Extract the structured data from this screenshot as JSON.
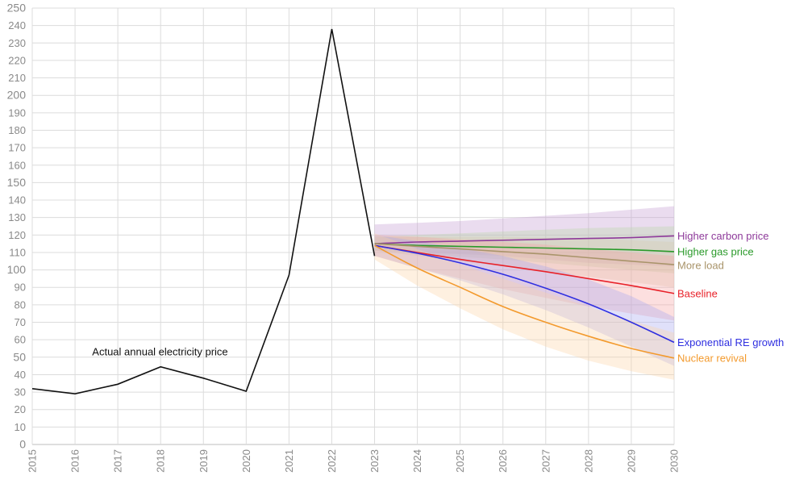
{
  "chart_data": {
    "type": "line",
    "title": "",
    "xlabel": "",
    "ylabel": "",
    "xlim": [
      2015,
      2030
    ],
    "ylim": [
      0,
      250
    ],
    "y_tick_step": 10,
    "x_ticks": [
      "2015",
      "2016",
      "2017",
      "2018",
      "2019",
      "2020",
      "2021",
      "2022",
      "2023",
      "2024",
      "2025",
      "2026",
      "2027",
      "2028",
      "2029",
      "2030"
    ],
    "y_ticks": [
      "0",
      "10",
      "20",
      "30",
      "40",
      "50",
      "60",
      "70",
      "80",
      "90",
      "100",
      "110",
      "120",
      "130",
      "140",
      "150",
      "160",
      "170",
      "180",
      "190",
      "200",
      "210",
      "220",
      "230",
      "240",
      "250"
    ],
    "grid": true,
    "annotation": {
      "text": "Actual annual electricity price",
      "x": 2016.4,
      "y": 53
    },
    "actual": {
      "color": "#111111",
      "x": [
        2015,
        2016,
        2017,
        2018,
        2019,
        2020,
        2021,
        2022,
        2023
      ],
      "y": [
        32,
        29,
        34.5,
        44.5,
        38,
        30.5,
        97,
        238,
        108
      ]
    },
    "scenarios": [
      {
        "name": "Higher carbon price",
        "color": "#8e3a9a",
        "band_color": "#c49bd0",
        "x": [
          2023,
          2024,
          2025,
          2026,
          2027,
          2028,
          2029,
          2030
        ],
        "y": [
          115,
          116,
          116.5,
          117,
          117.5,
          118,
          118.5,
          119.5
        ],
        "lower": [
          111,
          110,
          109,
          108,
          106,
          104,
          103,
          102
        ],
        "upper": [
          126,
          127,
          128,
          129.5,
          131,
          132.5,
          134.5,
          136.5
        ]
      },
      {
        "name": "Higher gas price",
        "color": "#2a9a2a",
        "band_color": "#b9d6a8",
        "x": [
          2023,
          2024,
          2025,
          2026,
          2027,
          2028,
          2029,
          2030
        ],
        "y": [
          115,
          114,
          113.5,
          113,
          112.5,
          112,
          111.5,
          110.5
        ],
        "lower": [
          111,
          109,
          107.5,
          106,
          104,
          102,
          100,
          98
        ],
        "upper": [
          119,
          120,
          121,
          122,
          123,
          124,
          124.5,
          125
        ]
      },
      {
        "name": "More load",
        "color": "#a9946a",
        "band_color": "#d7ccb0",
        "x": [
          2023,
          2024,
          2025,
          2026,
          2027,
          2028,
          2029,
          2030
        ],
        "y": [
          115,
          113.5,
          112,
          110.5,
          109,
          107,
          105,
          103
        ],
        "lower": [
          111,
          108,
          105,
          102,
          99,
          96,
          93,
          90
        ],
        "upper": [
          119,
          119,
          119,
          119,
          118.5,
          118,
          117,
          116
        ]
      },
      {
        "name": "Baseline",
        "color": "#e8222a",
        "band_color": "#f5a3a3",
        "x": [
          2023,
          2024,
          2025,
          2026,
          2027,
          2028,
          2029,
          2030
        ],
        "y": [
          114,
          110,
          106,
          102.5,
          99,
          95,
          91,
          86.5
        ],
        "lower": [
          108,
          101,
          95,
          89,
          84,
          79,
          75,
          71
        ],
        "upper": [
          120,
          119,
          117.5,
          116,
          114.5,
          112,
          110,
          108
        ]
      },
      {
        "name": "Exponential RE growth",
        "color": "#2f2fe0",
        "band_color": "#a6a6f2",
        "x": [
          2023,
          2024,
          2025,
          2026,
          2027,
          2028,
          2029,
          2030
        ],
        "y": [
          114,
          109.5,
          104,
          97.5,
          89.5,
          80.5,
          70,
          58.5
        ],
        "lower": [
          108,
          101,
          94,
          86,
          77,
          67,
          56,
          45
        ],
        "upper": [
          120,
          116.5,
          112.5,
          108,
          102,
          94.5,
          85,
          73
        ]
      },
      {
        "name": "Nuclear revival",
        "color": "#f39a2d",
        "band_color": "#fbd3a6",
        "x": [
          2023,
          2024,
          2025,
          2026,
          2027,
          2028,
          2029,
          2030
        ],
        "y": [
          114,
          101,
          90,
          79,
          70,
          62,
          55,
          49.5
        ],
        "lower": [
          106,
          91,
          78,
          66,
          56,
          48,
          42,
          37
        ],
        "upper": [
          121,
          112,
          103,
          95,
          87,
          79,
          71,
          64
        ]
      }
    ]
  }
}
